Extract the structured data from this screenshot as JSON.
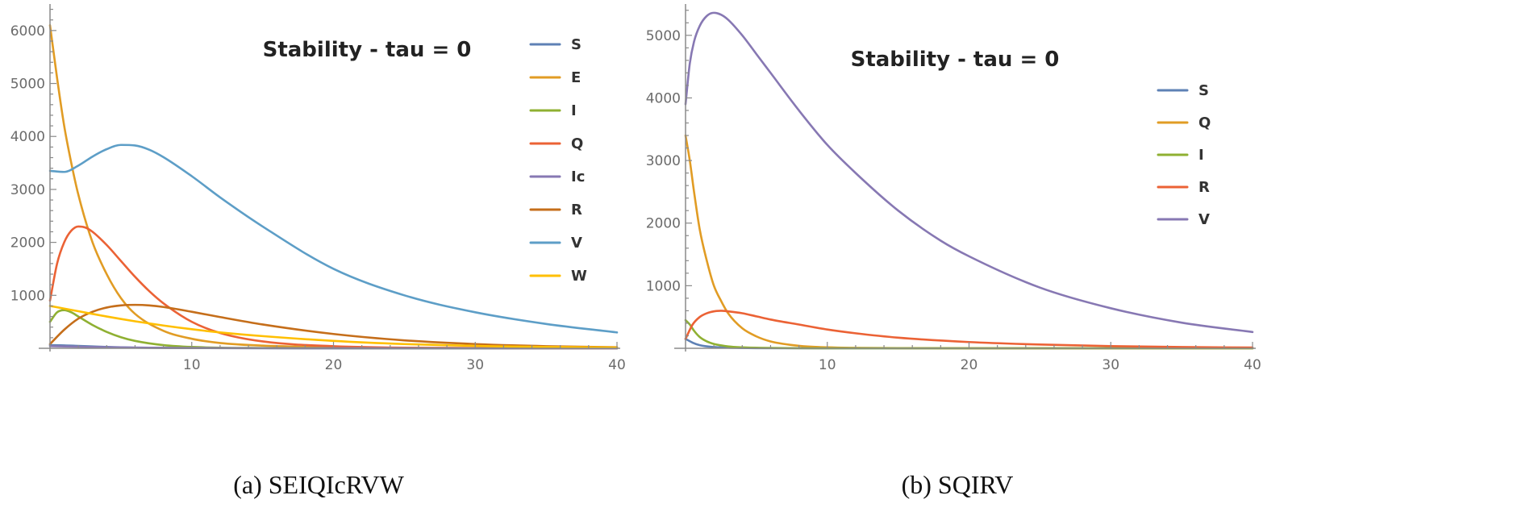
{
  "colors": {
    "blue": "#5e81b5",
    "orange": "#e19c24",
    "green": "#8fb032",
    "red": "#eb6235",
    "purple": "#8778b3",
    "brown": "#c56e1a",
    "cyan": "#5d9ec7",
    "yellow": "#ffbf00"
  },
  "chart_data": [
    {
      "type": "line",
      "title": "Stability - tau = 0",
      "caption": "(a)  SEIQIcRVW",
      "xlim": [
        0,
        40
      ],
      "ylim": [
        0,
        6500
      ],
      "x_ticks": [
        10,
        20,
        30,
        40
      ],
      "y_ticks": [
        1000,
        2000,
        3000,
        4000,
        5000,
        6000
      ],
      "legend_position": "right",
      "series": [
        {
          "name": "S",
          "color": "#5e81b5",
          "x": [
            0,
            1,
            2,
            3,
            4,
            5,
            6,
            8,
            10,
            15,
            20,
            30,
            40
          ],
          "y": [
            60,
            55,
            45,
            35,
            25,
            18,
            13,
            8,
            5,
            2,
            1,
            0,
            0
          ]
        },
        {
          "name": "E",
          "color": "#e19c24",
          "x": [
            0,
            0.5,
            1,
            1.5,
            2,
            3,
            4,
            5,
            6,
            8,
            10,
            12,
            15,
            20,
            30,
            40
          ],
          "y": [
            6100,
            5100,
            4200,
            3500,
            2900,
            2000,
            1400,
            950,
            650,
            330,
            180,
            100,
            50,
            20,
            5,
            2
          ]
        },
        {
          "name": "I",
          "color": "#8fb032",
          "x": [
            0,
            0.5,
            1,
            1.5,
            2,
            3,
            4,
            5,
            6,
            8,
            10,
            15,
            20,
            40
          ],
          "y": [
            500,
            680,
            720,
            680,
            600,
            440,
            310,
            210,
            140,
            60,
            25,
            5,
            2,
            0
          ]
        },
        {
          "name": "Q",
          "color": "#eb6235",
          "x": [
            0,
            0.5,
            1,
            1.5,
            2,
            2.5,
            3,
            4,
            5,
            6,
            7,
            8,
            10,
            12,
            15,
            20,
            30,
            40
          ],
          "y": [
            900,
            1600,
            2000,
            2220,
            2300,
            2280,
            2200,
            1950,
            1650,
            1350,
            1080,
            850,
            500,
            290,
            130,
            40,
            5,
            1
          ]
        },
        {
          "name": "Ic",
          "color": "#8778b3",
          "x": [
            0,
            2,
            4,
            6,
            10,
            20,
            40
          ],
          "y": [
            40,
            30,
            20,
            13,
            5,
            1,
            0
          ]
        },
        {
          "name": "R",
          "color": "#c56e1a",
          "x": [
            0,
            1,
            2,
            3,
            4,
            5,
            6,
            7,
            8,
            10,
            12,
            15,
            20,
            25,
            30,
            35,
            40
          ],
          "y": [
            80,
            350,
            560,
            690,
            770,
            810,
            820,
            810,
            780,
            690,
            590,
            450,
            270,
            150,
            80,
            40,
            20
          ]
        },
        {
          "name": "V",
          "color": "#5d9ec7",
          "x": [
            0,
            1,
            2,
            3,
            4,
            5,
            6,
            7,
            8,
            10,
            12,
            15,
            20,
            25,
            30,
            35,
            40
          ],
          "y": [
            3350,
            3330,
            3450,
            3620,
            3760,
            3840,
            3830,
            3750,
            3610,
            3250,
            2850,
            2300,
            1500,
            1000,
            680,
            460,
            300
          ]
        },
        {
          "name": "W",
          "color": "#ffbf00",
          "x": [
            0,
            2,
            4,
            6,
            8,
            10,
            12,
            15,
            20,
            25,
            30,
            35,
            40
          ],
          "y": [
            800,
            700,
            600,
            510,
            430,
            360,
            300,
            230,
            140,
            80,
            45,
            25,
            15
          ]
        }
      ]
    },
    {
      "type": "line",
      "title": "Stability - tau = 0",
      "caption": "(b)  SQIRV",
      "xlim": [
        0,
        40
      ],
      "ylim": [
        0,
        5500
      ],
      "x_ticks": [
        10,
        20,
        30,
        40
      ],
      "y_ticks": [
        1000,
        2000,
        3000,
        4000,
        5000
      ],
      "legend_position": "right",
      "series": [
        {
          "name": "S",
          "color": "#5e81b5",
          "x": [
            0,
            0.5,
            1,
            2,
            3,
            5,
            10,
            40
          ],
          "y": [
            150,
            90,
            50,
            20,
            10,
            3,
            0,
            0
          ]
        },
        {
          "name": "Q",
          "color": "#e19c24",
          "x": [
            0,
            0.3,
            0.6,
            1,
            1.5,
            2,
            2.5,
            3,
            4,
            5,
            6,
            8,
            10,
            15,
            20,
            30,
            40
          ],
          "y": [
            3400,
            3000,
            2500,
            1900,
            1400,
            1000,
            760,
            560,
            320,
            190,
            110,
            40,
            15,
            3,
            1,
            0,
            0
          ]
        },
        {
          "name": "I",
          "color": "#8fb032",
          "x": [
            0,
            0.3,
            0.6,
            1,
            1.5,
            2,
            3,
            4,
            6,
            10,
            40
          ],
          "y": [
            450,
            380,
            280,
            180,
            110,
            70,
            30,
            15,
            5,
            1,
            0
          ]
        },
        {
          "name": "R",
          "color": "#eb6235",
          "x": [
            0,
            0.5,
            1,
            1.5,
            2,
            2.5,
            3,
            4,
            5,
            6,
            8,
            10,
            12,
            15,
            20,
            25,
            30,
            35,
            40
          ],
          "y": [
            150,
            380,
            500,
            560,
            590,
            600,
            590,
            560,
            510,
            460,
            380,
            300,
            240,
            170,
            100,
            60,
            35,
            20,
            12
          ]
        },
        {
          "name": "V",
          "color": "#8778b3",
          "x": [
            0,
            0.3,
            0.6,
            1,
            1.5,
            2,
            2.5,
            3,
            4,
            5,
            6,
            8,
            10,
            12,
            15,
            18,
            20,
            25,
            30,
            35,
            40
          ],
          "y": [
            3900,
            4550,
            4900,
            5150,
            5310,
            5360,
            5330,
            5250,
            5000,
            4700,
            4400,
            3800,
            3250,
            2800,
            2200,
            1720,
            1470,
            970,
            640,
            410,
            260
          ]
        }
      ]
    }
  ]
}
